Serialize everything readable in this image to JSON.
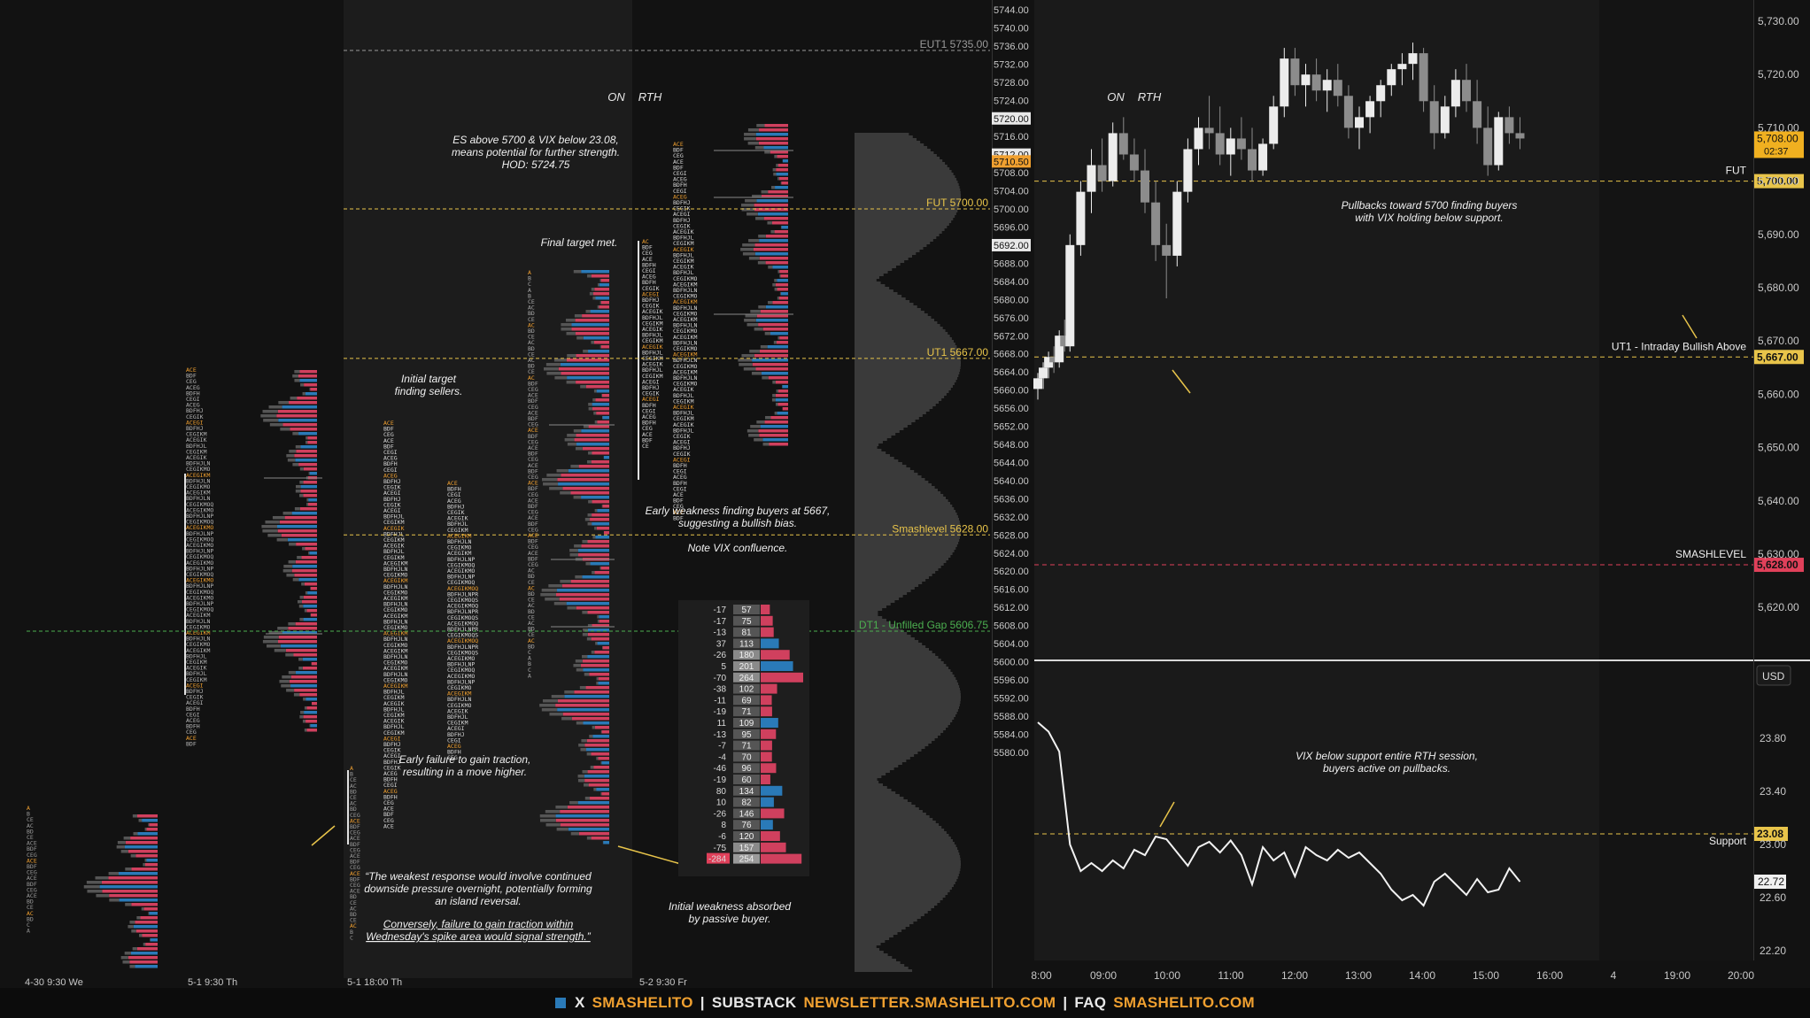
{
  "left_panel": {
    "session_headers": {
      "on": "ON",
      "rth": "RTH"
    },
    "price_axis": [
      "5744.00",
      "5740.00",
      "5736.00",
      "5732.00",
      "5728.00",
      "5724.00",
      "5720.00",
      "5716.00",
      "5712.00",
      "5708.00",
      "5704.00",
      "5700.00",
      "5696.00",
      "5692.00",
      "5688.00",
      "5684.00",
      "5680.00",
      "5676.00",
      "5672.00",
      "5668.00",
      "5664.00",
      "5660.00",
      "5656.00",
      "5652.00",
      "5648.00",
      "5644.00",
      "5640.00",
      "5636.00",
      "5632.00",
      "5628.00",
      "5624.00",
      "5620.00",
      "5616.00",
      "5612.00",
      "5608.00",
      "5604.00",
      "5600.00",
      "5596.00",
      "5592.00",
      "5588.00",
      "5584.00",
      "5580.00"
    ],
    "price_badges": [
      {
        "price": "5720.00",
        "style": "white"
      },
      {
        "price": "5712.00",
        "style": "white"
      },
      {
        "price": "5710.50",
        "style": "orange"
      },
      {
        "price": "5692.00",
        "style": "white"
      }
    ],
    "levels": [
      {
        "label": "EUT1  5735.00",
        "price": 5735.0,
        "color": "#9a9a9a"
      },
      {
        "label": "FUT  5700.00",
        "price": 5700.0,
        "color": "#e8c44a"
      },
      {
        "label": "UT1  5667.00",
        "price": 5667.0,
        "color": "#e8c44a"
      },
      {
        "label": "Smashlevel  5628.00",
        "price": 5628.0,
        "color": "#e8c44a"
      },
      {
        "label": "DT1 - Unfilled Gap  5606.75",
        "price": 5606.75,
        "color": "#4caf50"
      }
    ],
    "time_labels": [
      "4-30  9:30 We",
      "5-1  9:30 Th",
      "5-1  18:00 Th",
      "5-2  9:30 Fr"
    ],
    "annotations": [
      {
        "lines": [
          "ES above 5700 & VIX below 23.08,",
          "means potential for further strength.",
          "HOD: 5724.75"
        ]
      },
      {
        "lines": [
          "Final target met."
        ]
      },
      {
        "lines": [
          "Initial target",
          "finding sellers."
        ]
      },
      {
        "lines": [
          "Early weakness finding buyers at 5667,",
          "suggesting a bullish bias."
        ]
      },
      {
        "lines": [
          "Note VIX confluence."
        ]
      },
      {
        "lines": [
          "Early failure to gain traction,",
          "resulting in a move higher."
        ]
      },
      {
        "lines": [
          "“The weakest response would involve continued",
          "downside pressure overnight, potentially forming",
          "an island reversal."
        ]
      },
      {
        "lines": [
          "Conversely, failure to gain traction within",
          "Wednesday's spike area would signal strength.”"
        ]
      },
      {
        "lines": [
          "Initial weakness absorbed",
          "by passive buyer."
        ]
      }
    ],
    "delta_table": {
      "delta": [
        "-17",
        "-17",
        "-13",
        "37",
        "-26",
        "5",
        "-70",
        "-38",
        "-11",
        "-19",
        "11",
        "-13",
        "-7",
        "-4",
        "-46",
        "-19",
        "80",
        "10",
        "-26",
        "8",
        "-6",
        "-75",
        "-284"
      ],
      "volume": [
        "57",
        "75",
        "81",
        "113",
        "180",
        "201",
        "264",
        "102",
        "69",
        "71",
        "109",
        "95",
        "71",
        "70",
        "96",
        "60",
        "134",
        "82",
        "146",
        "76",
        "120",
        "157",
        "254"
      ]
    }
  },
  "right_top": {
    "session_headers": {
      "on": "ON",
      "rth": "RTH"
    },
    "price_axis": [
      "5,730.00",
      "5,720.00",
      "5,710.00",
      "5,700.00",
      "5,690.00",
      "5,680.00",
      "5,670.00",
      "5,660.00",
      "5,650.00",
      "5,640.00",
      "5,630.00",
      "5,620.00"
    ],
    "last_price": "5,708.00",
    "countdown": "02:37",
    "levels": [
      {
        "label": "FUT",
        "badge": "5,700.00",
        "price": 5700.0,
        "color": "#e8c44a"
      },
      {
        "label": "UT1 - Intraday Bullish Above",
        "badge": "5,667.00",
        "price": 5667.0,
        "color": "#e8c44a"
      },
      {
        "label": "SMASHLEVEL",
        "badge": "5,628.00",
        "price": 5628.0,
        "color": "#e0405a"
      }
    ],
    "annotation": [
      "Pullbacks toward 5700 finding buyers",
      "with VIX holding below support."
    ]
  },
  "right_bottom": {
    "currency": "USD",
    "price_axis": [
      "23.80",
      "23.40",
      "23.00",
      "22.60",
      "22.20"
    ],
    "last_price": "22.72",
    "levels": [
      {
        "label": "Support",
        "badge": "23.08",
        "price": 23.08,
        "color": "#e8c44a"
      }
    ],
    "annotation": [
      "VIX below support entire RTH session,",
      "buyers active on pullbacks."
    ]
  },
  "time_axis": [
    "8:00",
    "09:00",
    "10:00",
    "11:00",
    "12:00",
    "13:00",
    "14:00",
    "15:00",
    "16:00",
    "4",
    "19:00",
    "20:00"
  ],
  "chart_data": [
    {
      "type": "bar",
      "title": "",
      "series": [
        {
          "name": "ES",
          "values": [
            {
              "t": "08:00",
              "o": 5661,
              "h": 5664,
              "l": 5659,
              "c": 5663
            },
            {
              "t": "08:05",
              "o": 5663,
              "h": 5666,
              "l": 5661,
              "c": 5665
            },
            {
              "t": "08:10",
              "o": 5665,
              "h": 5668,
              "l": 5663,
              "c": 5667
            },
            {
              "t": "08:15",
              "o": 5667,
              "h": 5669,
              "l": 5664,
              "c": 5666
            },
            {
              "t": "08:20",
              "o": 5666,
              "h": 5672,
              "l": 5665,
              "c": 5671
            },
            {
              "t": "08:25",
              "o": 5671,
              "h": 5674,
              "l": 5668,
              "c": 5669
            },
            {
              "t": "08:30",
              "o": 5669,
              "h": 5690,
              "l": 5668,
              "c": 5688
            },
            {
              "t": "08:40",
              "o": 5688,
              "h": 5700,
              "l": 5686,
              "c": 5698
            },
            {
              "t": "08:50",
              "o": 5698,
              "h": 5706,
              "l": 5694,
              "c": 5703
            },
            {
              "t": "09:00",
              "o": 5703,
              "h": 5708,
              "l": 5698,
              "c": 5700
            },
            {
              "t": "09:10",
              "o": 5700,
              "h": 5711,
              "l": 5699,
              "c": 5709
            },
            {
              "t": "09:20",
              "o": 5709,
              "h": 5712,
              "l": 5704,
              "c": 5705
            },
            {
              "t": "09:30",
              "o": 5705,
              "h": 5708,
              "l": 5700,
              "c": 5702
            },
            {
              "t": "09:40",
              "o": 5702,
              "h": 5706,
              "l": 5694,
              "c": 5696
            },
            {
              "t": "09:50",
              "o": 5696,
              "h": 5700,
              "l": 5685,
              "c": 5688
            },
            {
              "t": "10:00",
              "o": 5688,
              "h": 5692,
              "l": 5678,
              "c": 5686
            },
            {
              "t": "10:10",
              "o": 5686,
              "h": 5700,
              "l": 5684,
              "c": 5698
            },
            {
              "t": "10:20",
              "o": 5698,
              "h": 5708,
              "l": 5696,
              "c": 5706
            },
            {
              "t": "10:30",
              "o": 5706,
              "h": 5712,
              "l": 5703,
              "c": 5710
            },
            {
              "t": "10:40",
              "o": 5710,
              "h": 5716,
              "l": 5706,
              "c": 5709
            },
            {
              "t": "10:50",
              "o": 5709,
              "h": 5714,
              "l": 5703,
              "c": 5705
            },
            {
              "t": "11:00",
              "o": 5705,
              "h": 5710,
              "l": 5701,
              "c": 5708
            },
            {
              "t": "11:10",
              "o": 5708,
              "h": 5712,
              "l": 5704,
              "c": 5706
            },
            {
              "t": "11:20",
              "o": 5706,
              "h": 5710,
              "l": 5700,
              "c": 5702
            },
            {
              "t": "11:30",
              "o": 5702,
              "h": 5708,
              "l": 5701,
              "c": 5707
            },
            {
              "t": "11:40",
              "o": 5707,
              "h": 5716,
              "l": 5706,
              "c": 5714
            },
            {
              "t": "11:50",
              "o": 5714,
              "h": 5725,
              "l": 5712,
              "c": 5723
            },
            {
              "t": "12:00",
              "o": 5723,
              "h": 5725,
              "l": 5716,
              "c": 5718
            },
            {
              "t": "12:10",
              "o": 5718,
              "h": 5722,
              "l": 5714,
              "c": 5720
            },
            {
              "t": "12:20",
              "o": 5720,
              "h": 5723,
              "l": 5715,
              "c": 5717
            },
            {
              "t": "12:30",
              "o": 5717,
              "h": 5721,
              "l": 5713,
              "c": 5719
            },
            {
              "t": "12:40",
              "o": 5719,
              "h": 5722,
              "l": 5714,
              "c": 5716
            },
            {
              "t": "12:50",
              "o": 5716,
              "h": 5718,
              "l": 5708,
              "c": 5710
            },
            {
              "t": "13:00",
              "o": 5710,
              "h": 5714,
              "l": 5706,
              "c": 5712
            },
            {
              "t": "13:10",
              "o": 5712,
              "h": 5716,
              "l": 5709,
              "c": 5715
            },
            {
              "t": "13:20",
              "o": 5715,
              "h": 5719,
              "l": 5712,
              "c": 5718
            },
            {
              "t": "13:30",
              "o": 5718,
              "h": 5722,
              "l": 5716,
              "c": 5721
            },
            {
              "t": "13:40",
              "o": 5721,
              "h": 5724,
              "l": 5718,
              "c": 5722
            },
            {
              "t": "13:50",
              "o": 5722,
              "h": 5726,
              "l": 5719,
              "c": 5724
            },
            {
              "t": "14:00",
              "o": 5724,
              "h": 5725,
              "l": 5713,
              "c": 5715
            },
            {
              "t": "14:10",
              "o": 5715,
              "h": 5718,
              "l": 5706,
              "c": 5709
            },
            {
              "t": "14:20",
              "o": 5709,
              "h": 5716,
              "l": 5708,
              "c": 5714
            },
            {
              "t": "14:30",
              "o": 5714,
              "h": 5721,
              "l": 5712,
              "c": 5719
            },
            {
              "t": "14:40",
              "o": 5719,
              "h": 5722,
              "l": 5713,
              "c": 5715
            },
            {
              "t": "14:50",
              "o": 5715,
              "h": 5719,
              "l": 5707,
              "c": 5710
            },
            {
              "t": "15:00",
              "o": 5710,
              "h": 5714,
              "l": 5701,
              "c": 5703
            },
            {
              "t": "15:10",
              "o": 5703,
              "h": 5713,
              "l": 5702,
              "c": 5712
            },
            {
              "t": "15:20",
              "o": 5712,
              "h": 5714,
              "l": 5707,
              "c": 5709
            },
            {
              "t": "15:30",
              "o": 5709,
              "h": 5712,
              "l": 5706,
              "c": 5708
            }
          ]
        }
      ],
      "ylim": [
        5620,
        5735
      ]
    },
    {
      "type": "line",
      "title": "",
      "series": [
        {
          "name": "VIX",
          "values": [
            {
              "t": "08:00",
              "v": 23.92
            },
            {
              "t": "08:10",
              "v": 23.85
            },
            {
              "t": "08:20",
              "v": 23.7
            },
            {
              "t": "08:30",
              "v": 23.0
            },
            {
              "t": "08:40",
              "v": 22.8
            },
            {
              "t": "08:50",
              "v": 22.86
            },
            {
              "t": "09:00",
              "v": 22.8
            },
            {
              "t": "09:10",
              "v": 22.88
            },
            {
              "t": "09:20",
              "v": 22.82
            },
            {
              "t": "09:30",
              "v": 22.96
            },
            {
              "t": "09:40",
              "v": 22.92
            },
            {
              "t": "09:50",
              "v": 23.06
            },
            {
              "t": "10:00",
              "v": 23.04
            },
            {
              "t": "10:10",
              "v": 22.94
            },
            {
              "t": "10:20",
              "v": 22.84
            },
            {
              "t": "10:30",
              "v": 22.98
            },
            {
              "t": "10:40",
              "v": 23.02
            },
            {
              "t": "10:50",
              "v": 22.94
            },
            {
              "t": "11:00",
              "v": 23.03
            },
            {
              "t": "11:10",
              "v": 22.92
            },
            {
              "t": "11:20",
              "v": 22.7
            },
            {
              "t": "11:30",
              "v": 22.98
            },
            {
              "t": "11:40",
              "v": 22.88
            },
            {
              "t": "11:50",
              "v": 22.94
            },
            {
              "t": "12:00",
              "v": 22.76
            },
            {
              "t": "12:10",
              "v": 22.98
            },
            {
              "t": "12:20",
              "v": 22.92
            },
            {
              "t": "12:30",
              "v": 22.88
            },
            {
              "t": "12:40",
              "v": 22.96
            },
            {
              "t": "12:50",
              "v": 22.9
            },
            {
              "t": "13:00",
              "v": 22.94
            },
            {
              "t": "13:10",
              "v": 22.86
            },
            {
              "t": "13:20",
              "v": 22.78
            },
            {
              "t": "13:30",
              "v": 22.66
            },
            {
              "t": "13:40",
              "v": 22.58
            },
            {
              "t": "13:50",
              "v": 22.62
            },
            {
              "t": "14:00",
              "v": 22.54
            },
            {
              "t": "14:10",
              "v": 22.72
            },
            {
              "t": "14:20",
              "v": 22.78
            },
            {
              "t": "14:30",
              "v": 22.7
            },
            {
              "t": "14:40",
              "v": 22.62
            },
            {
              "t": "14:50",
              "v": 22.74
            },
            {
              "t": "15:00",
              "v": 22.64
            },
            {
              "t": "15:10",
              "v": 22.66
            },
            {
              "t": "15:20",
              "v": 22.82
            },
            {
              "t": "15:30",
              "v": 22.72
            }
          ]
        }
      ],
      "ylim": [
        22.1,
        24.1
      ]
    }
  ],
  "footer": {
    "x_label": "X",
    "x_handle": "SMASHELITO",
    "substack_label": "SUBSTACK",
    "substack_url": "NEWSLETTER.SMASHELITO.COM",
    "faq_label": "FAQ",
    "faq_url": "SMASHELITO.COM",
    "separator": "|",
    "colors": {
      "accent": "#f0a030",
      "brand_square": "#2a7ab8"
    }
  }
}
